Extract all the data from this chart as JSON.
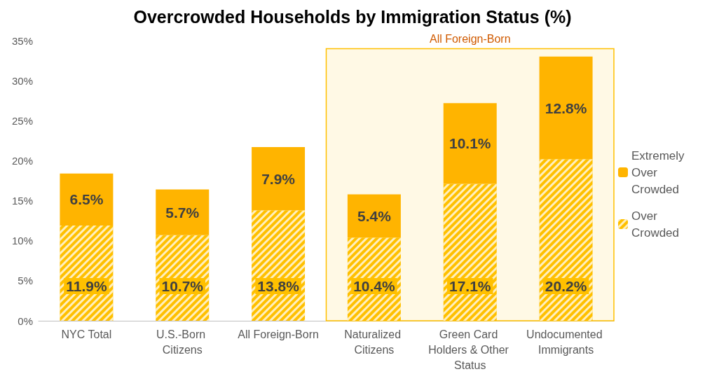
{
  "chart_data": {
    "type": "bar",
    "title": "Overcrowded Households by Immigration Status (%)",
    "categories": [
      "NYC Total",
      "U.S.-Born Citizens",
      "All Foreign-Born",
      "Naturalized Citizens",
      "Green Card Holders & Other Status",
      "Undocumented Immigrants"
    ],
    "stacked": true,
    "series": [
      {
        "name": "Over Crowded",
        "color": "#ffc000",
        "values": [
          11.9,
          10.7,
          13.8,
          10.4,
          17.1,
          20.2
        ],
        "value_labels": [
          "11.9%",
          "10.7%",
          "13.8%",
          "10.4%",
          "17.1%",
          "20.2%"
        ]
      },
      {
        "name": "Extremely Over Crowded",
        "color": "#ffb400",
        "values": [
          6.5,
          5.7,
          7.9,
          5.4,
          10.1,
          12.8
        ],
        "value_labels": [
          "6.5%",
          "5.7%",
          "7.9%",
          "5.4%",
          "10.1%",
          "12.8%"
        ]
      }
    ],
    "ylim": [
      0,
      35
    ],
    "yticks": [
      {
        "value": 0,
        "label": "0%"
      },
      {
        "value": 5,
        "label": "5%"
      },
      {
        "value": 10,
        "label": "10%"
      },
      {
        "value": 15,
        "label": "15%"
      },
      {
        "value": 20,
        "label": "20%"
      },
      {
        "value": 25,
        "label": "25%"
      },
      {
        "value": 30,
        "label": "30%"
      },
      {
        "value": 35,
        "label": "35%"
      }
    ],
    "bands": [
      {
        "axis": "x",
        "from": "Naturalized Citizens",
        "to": "Undocumented Immigrants",
        "label": "All Foreign-Born",
        "color": "#ffc000"
      }
    ],
    "grid": false,
    "legend": "right"
  }
}
